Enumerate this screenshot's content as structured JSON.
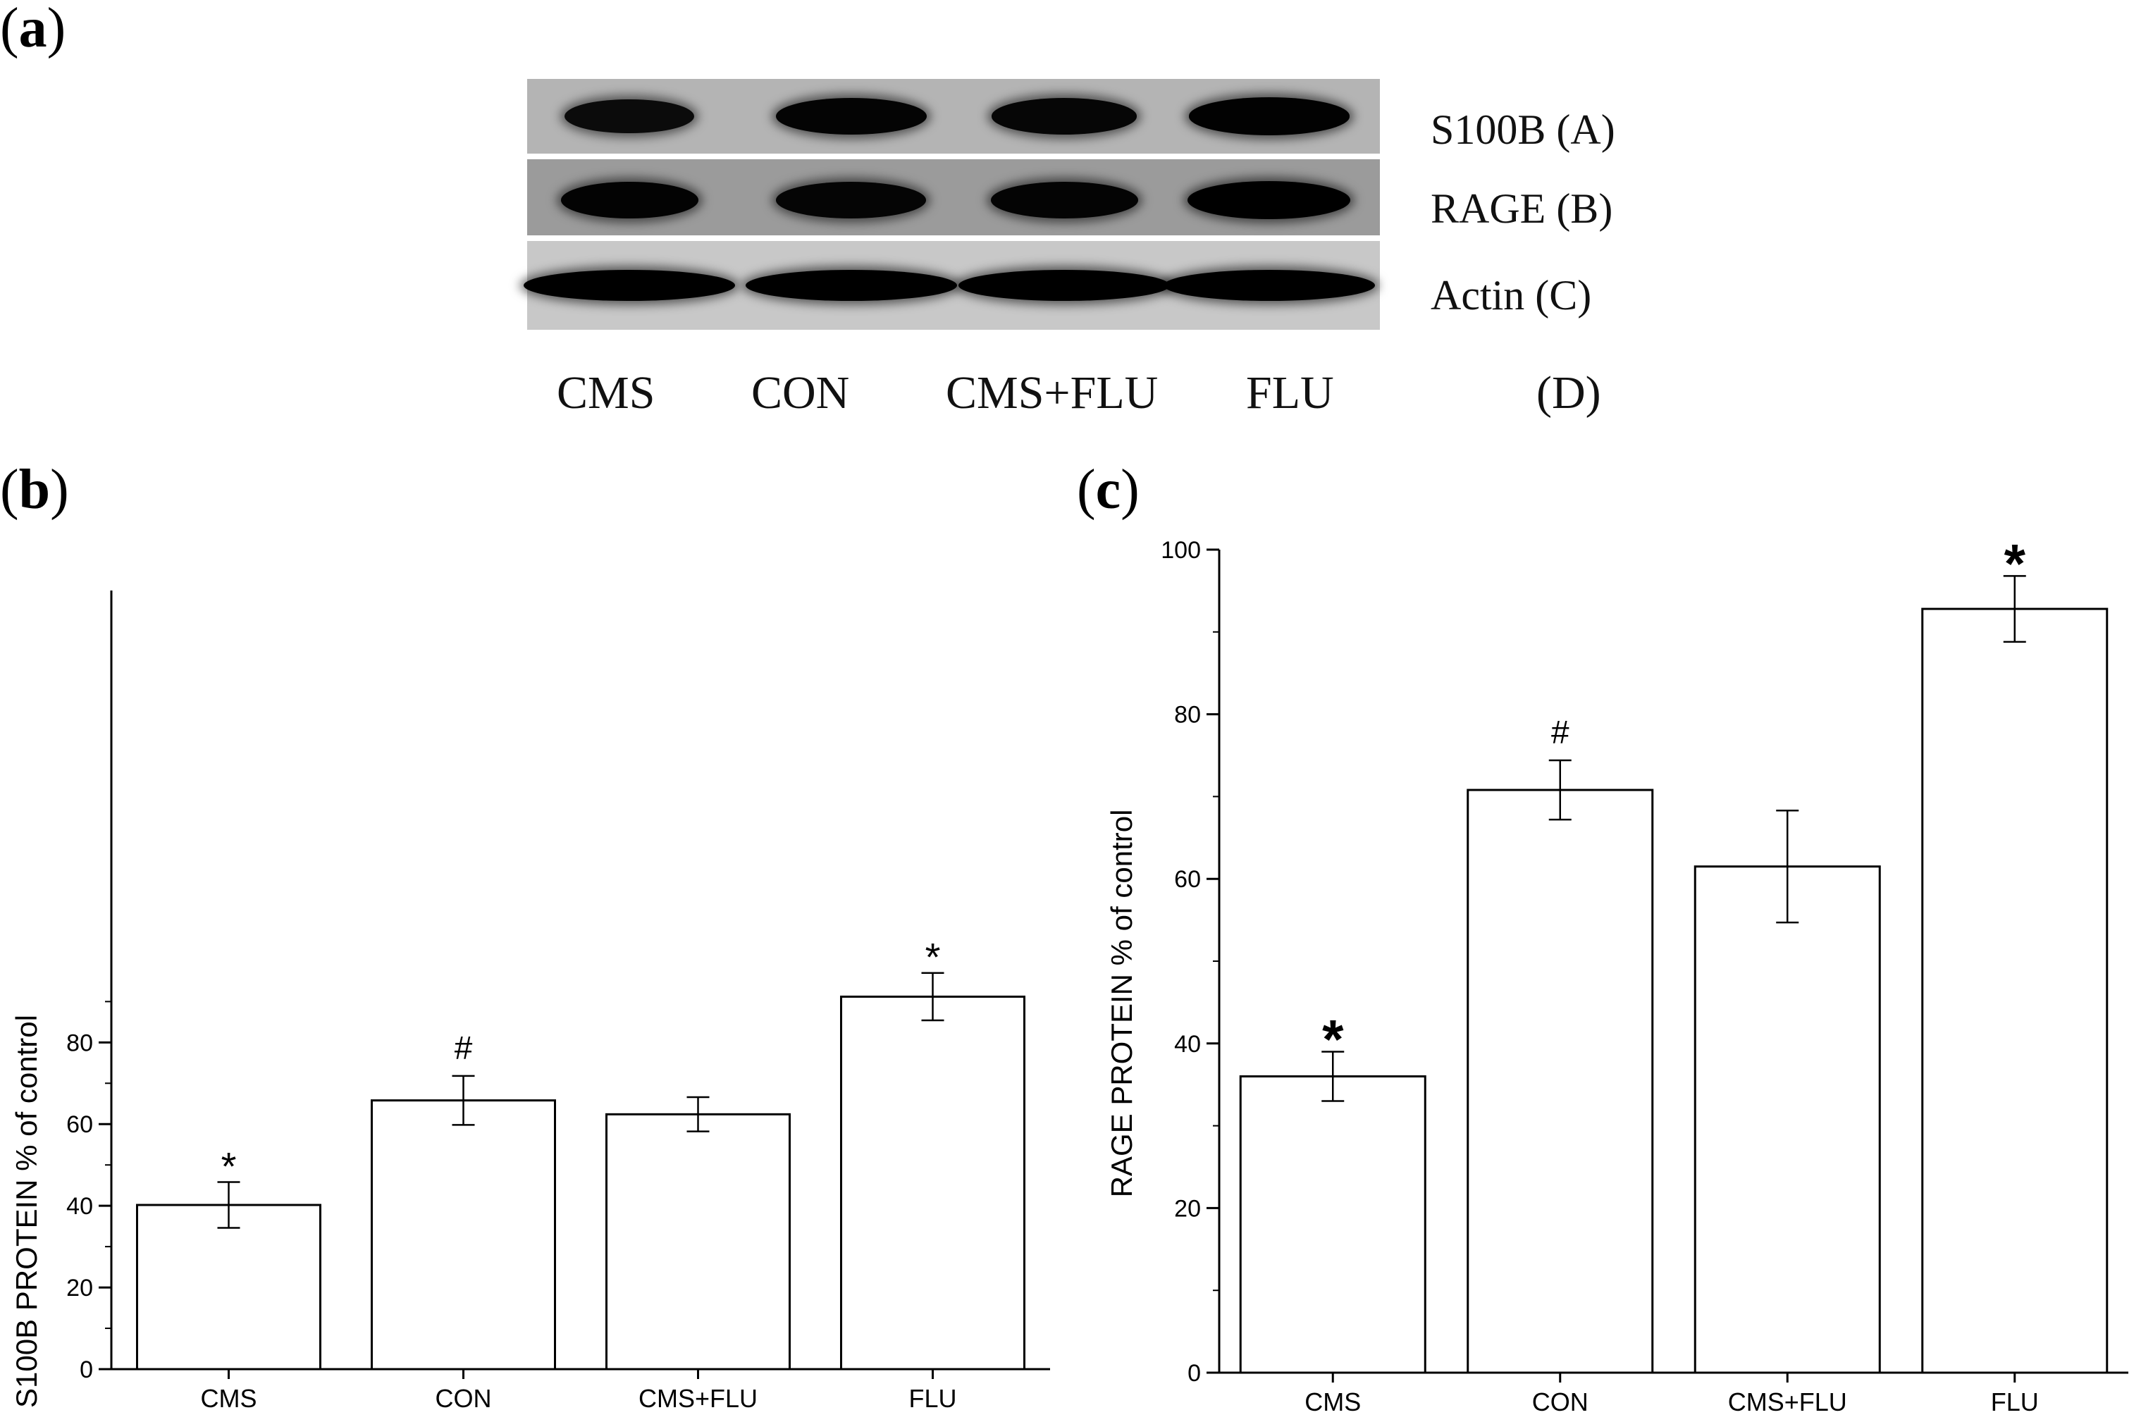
{
  "panels": {
    "a_label": "a",
    "b_label": "b",
    "c_label": "c"
  },
  "blot": {
    "rows": [
      {
        "label": "S100B (A)",
        "background": "#b4b4b4",
        "band_darkness": [
          0.72,
          0.9,
          0.85,
          0.95
        ]
      },
      {
        "label": "RAGE (B)",
        "background": "#9b9b9b",
        "band_darkness": [
          0.92,
          0.88,
          0.9,
          1.0
        ]
      },
      {
        "label": "Actin (C)",
        "background": "#c8c8c8",
        "band_darkness": [
          1.0,
          1.0,
          1.0,
          1.0
        ]
      }
    ],
    "lanes": [
      "CMS",
      "CON",
      "CMS+FLU",
      "FLU"
    ],
    "extra_label": "(D)"
  },
  "chart_data": [
    {
      "type": "bar",
      "categories": [
        "CMS",
        "CON",
        "CMS+FLU",
        "FLU"
      ],
      "values": [
        40.2,
        65.8,
        62.4,
        91.2
      ],
      "errors": [
        5.6,
        6.0,
        4.2,
        5.8
      ],
      "annotations": [
        "*",
        "#",
        "",
        "*"
      ],
      "ylabel": "S100B PROTEIN % of control",
      "xlabel": "",
      "ylim": [
        0,
        98
      ],
      "yticks": [
        0,
        20,
        40,
        60,
        80
      ]
    },
    {
      "type": "bar",
      "categories": [
        "CMS",
        "CON",
        "CMS+FLU",
        "FLU"
      ],
      "values": [
        36.0,
        70.8,
        61.5,
        92.8
      ],
      "errors": [
        3.0,
        3.6,
        6.8,
        4.0
      ],
      "annotations": [
        "*",
        "#",
        "",
        "*"
      ],
      "ylabel": "RAGE PROTEIN % of control",
      "xlabel": "",
      "ylim": [
        0,
        100
      ],
      "yticks": [
        0,
        20,
        40,
        60,
        80,
        100
      ]
    }
  ]
}
